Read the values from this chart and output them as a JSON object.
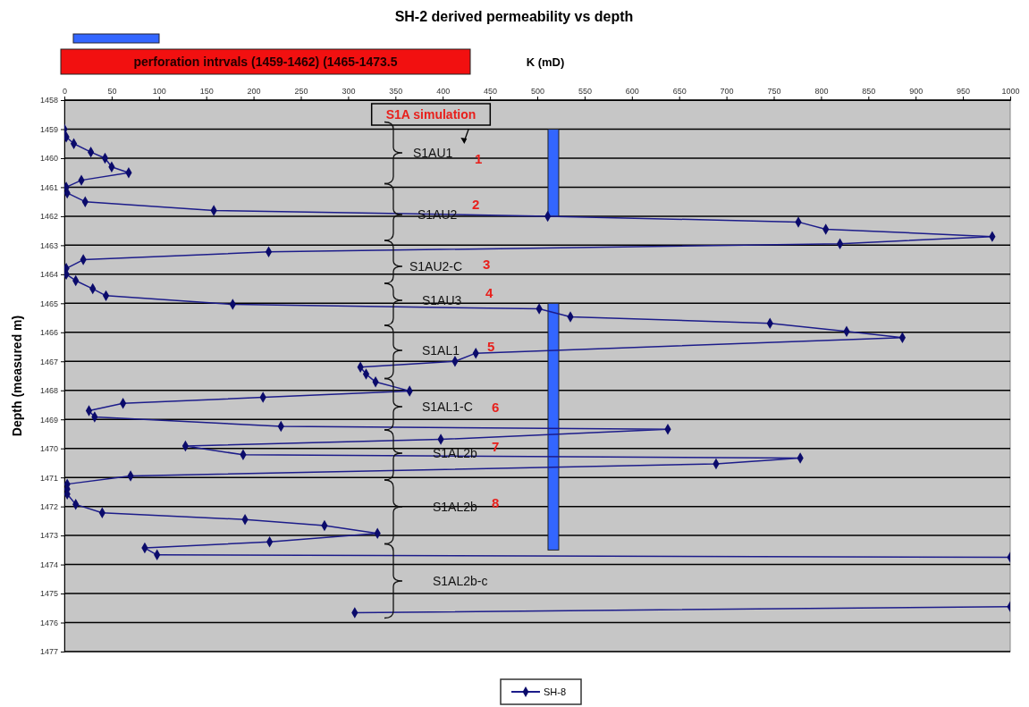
{
  "chart_data": {
    "type": "line",
    "title": "SH-2 derived permeability vs depth",
    "xlabel": "K (mD)",
    "ylabel": "Depth (measured m)",
    "xlim": [
      0,
      1000
    ],
    "xticks": [
      0,
      50,
      100,
      150,
      200,
      250,
      300,
      350,
      400,
      450,
      500,
      550,
      600,
      650,
      700,
      750,
      800,
      850,
      900,
      950,
      1000
    ],
    "ylim": [
      1477,
      1458
    ],
    "yticks": [
      1458,
      1459,
      1460,
      1461,
      1462,
      1463,
      1464,
      1465,
      1466,
      1467,
      1468,
      1469,
      1470,
      1471,
      1472,
      1473,
      1474,
      1475,
      1476,
      1477
    ],
    "grid": "y",
    "legend": "bottom",
    "marker": "diamond",
    "line_style": "solid",
    "series": [
      {
        "type": "bar",
        "name": "perforation intrvals (1459-1462)  (1465-1473.5",
        "color": "#3366ff",
        "x": [
          517,
          517
        ],
        "base": [
          1459,
          1465
        ],
        "values": [
          3,
          8.5
        ]
      },
      {
        "name": "SH-8",
        "color": "#1c1c8a",
        "x": [
          0,
          2,
          10,
          28,
          43,
          50,
          68,
          18,
          2,
          3,
          22,
          158,
          511,
          776,
          805,
          981,
          820,
          216,
          20,
          2,
          2,
          12,
          30,
          44,
          178,
          502,
          535,
          746,
          827,
          886,
          435,
          413,
          313,
          319,
          329,
          365,
          210,
          62,
          26,
          32,
          229,
          638,
          398,
          128,
          189,
          778,
          689,
          70,
          3,
          3,
          3,
          12,
          40,
          191,
          275,
          331,
          217,
          85,
          98,
          1000,
          null,
          1000,
          307
        ],
        "values": [
          1459.0,
          1459.27,
          1459.5,
          1459.79,
          1460.0,
          1460.3,
          1460.5,
          1460.76,
          1461.0,
          1461.2,
          1461.5,
          1461.8,
          1462.0,
          1462.2,
          1462.45,
          1462.7,
          1462.95,
          1463.23,
          1463.5,
          1463.8,
          1464.0,
          1464.22,
          1464.5,
          1464.74,
          1465.04,
          1465.19,
          1465.47,
          1465.69,
          1465.97,
          1466.18,
          1466.72,
          1467.0,
          1467.2,
          1467.44,
          1467.71,
          1468.02,
          1468.24,
          1468.45,
          1468.7,
          1468.92,
          1469.24,
          1469.34,
          1469.69,
          1469.92,
          1470.22,
          1470.33,
          1470.53,
          1470.95,
          1471.23,
          1471.4,
          1471.57,
          1471.93,
          1472.22,
          1472.45,
          1472.66,
          1472.93,
          1473.22,
          1473.43,
          1473.67,
          1473.75,
          null,
          1475.45,
          1475.66
        ]
      }
    ],
    "annotations": [
      "S1A simulation",
      "S1AU1",
      "1",
      "S1AU2",
      "2",
      "S1AU2-C",
      "3",
      "S1AU3",
      "4",
      "S1AL1",
      "5",
      "S1AL1-C",
      "6",
      "S1AL2b",
      "7",
      "S1AL2b",
      "8",
      "S1AL2b-c"
    ]
  }
}
